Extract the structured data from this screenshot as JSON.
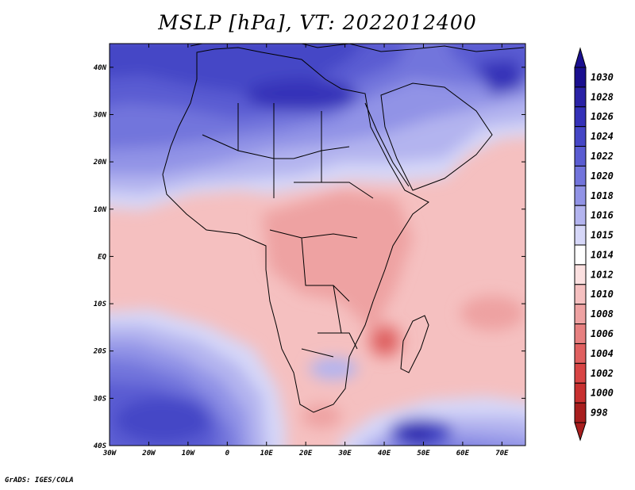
{
  "title": "MSLP [hPa], VT: 2022012400",
  "credit": "GrADS: IGES/COLA",
  "map": {
    "extent": {
      "lon": [
        -30,
        76
      ],
      "lat": [
        -40,
        45
      ]
    },
    "x_ticks": [
      {
        "lon": -30,
        "label": "30W"
      },
      {
        "lon": -20,
        "label": "20W"
      },
      {
        "lon": -10,
        "label": "10W"
      },
      {
        "lon": 0,
        "label": "0"
      },
      {
        "lon": 10,
        "label": "10E"
      },
      {
        "lon": 20,
        "label": "20E"
      },
      {
        "lon": 30,
        "label": "30E"
      },
      {
        "lon": 40,
        "label": "40E"
      },
      {
        "lon": 50,
        "label": "50E"
      },
      {
        "lon": 60,
        "label": "60E"
      },
      {
        "lon": 70,
        "label": "70E"
      }
    ],
    "y_ticks": [
      {
        "lat": 40,
        "label": "40N"
      },
      {
        "lat": 30,
        "label": "30N"
      },
      {
        "lat": 20,
        "label": "20N"
      },
      {
        "lat": 10,
        "label": "10N"
      },
      {
        "lat": 0,
        "label": "EQ"
      },
      {
        "lat": -10,
        "label": "10S"
      },
      {
        "lat": -20,
        "label": "20S"
      },
      {
        "lat": -30,
        "label": "30S"
      },
      {
        "lat": -40,
        "label": "40S"
      }
    ]
  },
  "colorbar": {
    "levels": [
      {
        "label": "1030",
        "color": "#1a0f8f"
      },
      {
        "label": "1028",
        "color": "#2a22a6"
      },
      {
        "label": "1026",
        "color": "#3431b8"
      },
      {
        "label": "1024",
        "color": "#4546c6"
      },
      {
        "label": "1022",
        "color": "#5a5cd2"
      },
      {
        "label": "1020",
        "color": "#7274dc"
      },
      {
        "label": "1018",
        "color": "#9193e6"
      },
      {
        "label": "1016",
        "color": "#b3b4ef"
      },
      {
        "label": "1015",
        "color": "#d6d7f8"
      },
      {
        "label": "1014",
        "color": "#ffffff"
      },
      {
        "label": "1012",
        "color": "#fbe0e0"
      },
      {
        "label": "1010",
        "color": "#f5c0c0"
      },
      {
        "label": "1008",
        "color": "#eea2a2"
      },
      {
        "label": "1006",
        "color": "#e78080"
      },
      {
        "label": "1004",
        "color": "#e06060"
      },
      {
        "label": "1002",
        "color": "#d84545"
      },
      {
        "label": "1000",
        "color": "#c83030"
      },
      {
        "label": "998",
        "color": "#a81e1e"
      }
    ]
  }
}
